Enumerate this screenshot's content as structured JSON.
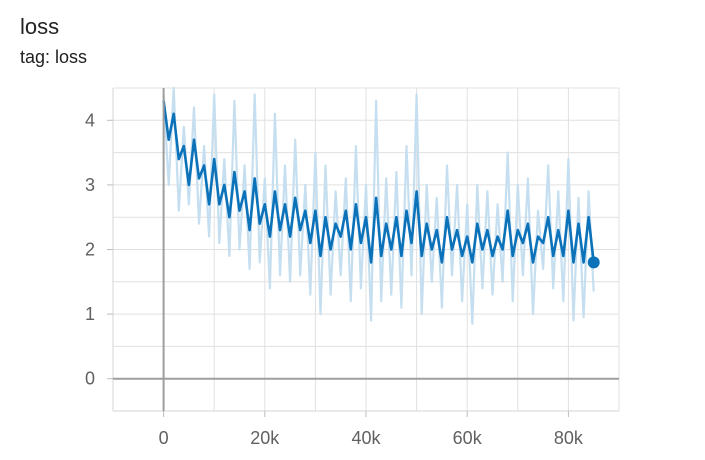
{
  "header": {
    "title": "loss",
    "subtitle": "tag: loss"
  },
  "chart_data": {
    "type": "line",
    "title": "loss",
    "subtitle": "tag: loss",
    "xlabel": "",
    "ylabel": "",
    "xlim": [
      -10000,
      90000
    ],
    "ylim": [
      -0.5,
      4.5
    ],
    "x_ticks": [
      0,
      20000,
      40000,
      60000,
      80000
    ],
    "x_tick_labels": [
      "0",
      "20k",
      "40k",
      "60k",
      "80k"
    ],
    "y_ticks": [
      0,
      1,
      2,
      3,
      4
    ],
    "y_tick_labels": [
      "0",
      "1",
      "2",
      "3",
      "4"
    ],
    "grid": true,
    "legend": "none",
    "colors": {
      "raw": "#c6dff0",
      "smoothed": "#0b72b9",
      "axis_zero": "#9e9e9e",
      "grid": "#e0e0e0"
    },
    "series": [
      {
        "role": "raw",
        "x": [
          0,
          1000,
          2000,
          3000,
          4000,
          5000,
          6000,
          7000,
          8000,
          9000,
          10000,
          11000,
          12000,
          13000,
          14000,
          15000,
          16000,
          17000,
          18000,
          19000,
          20000,
          21000,
          22000,
          23000,
          24000,
          25000,
          26000,
          27000,
          28000,
          29000,
          30000,
          31000,
          32000,
          33000,
          34000,
          35000,
          36000,
          37000,
          38000,
          39000,
          40000,
          41000,
          42000,
          43000,
          44000,
          45000,
          46000,
          47000,
          48000,
          49000,
          50000,
          51000,
          52000,
          53000,
          54000,
          55000,
          56000,
          57000,
          58000,
          59000,
          60000,
          61000,
          62000,
          63000,
          64000,
          65000,
          66000,
          67000,
          68000,
          69000,
          70000,
          71000,
          72000,
          73000,
          74000,
          75000,
          76000,
          77000,
          78000,
          79000,
          80000,
          81000,
          82000,
          83000,
          84000,
          85000
        ],
        "values": [
          4.4,
          3.0,
          4.5,
          2.6,
          3.9,
          2.7,
          4.2,
          2.4,
          3.6,
          2.2,
          4.4,
          2.1,
          3.4,
          1.9,
          4.3,
          2.0,
          3.3,
          1.7,
          4.4,
          1.8,
          3.1,
          1.4,
          4.1,
          1.6,
          3.3,
          1.5,
          3.7,
          1.6,
          3.0,
          1.3,
          3.5,
          1.0,
          3.3,
          1.3,
          2.9,
          1.6,
          3.1,
          1.2,
          3.6,
          1.4,
          3.0,
          0.9,
          4.3,
          1.2,
          3.1,
          1.3,
          3.2,
          1.1,
          3.6,
          1.6,
          4.4,
          1.0,
          3.0,
          1.5,
          2.8,
          1.1,
          3.3,
          1.6,
          3.0,
          1.2,
          2.7,
          0.85,
          3.0,
          1.4,
          2.9,
          1.3,
          2.7,
          1.5,
          3.5,
          1.2,
          3.0,
          1.6,
          3.1,
          1.0,
          2.6,
          1.7,
          3.3,
          1.4,
          2.9,
          1.2,
          3.4,
          0.9,
          2.8,
          0.95,
          2.9,
          1.35
        ]
      },
      {
        "role": "smoothed",
        "x": [
          0,
          1000,
          2000,
          3000,
          4000,
          5000,
          6000,
          7000,
          8000,
          9000,
          10000,
          11000,
          12000,
          13000,
          14000,
          15000,
          16000,
          17000,
          18000,
          19000,
          20000,
          21000,
          22000,
          23000,
          24000,
          25000,
          26000,
          27000,
          28000,
          29000,
          30000,
          31000,
          32000,
          33000,
          34000,
          35000,
          36000,
          37000,
          38000,
          39000,
          40000,
          41000,
          42000,
          43000,
          44000,
          45000,
          46000,
          47000,
          48000,
          49000,
          50000,
          51000,
          52000,
          53000,
          54000,
          55000,
          56000,
          57000,
          58000,
          59000,
          60000,
          61000,
          62000,
          63000,
          64000,
          65000,
          66000,
          67000,
          68000,
          69000,
          70000,
          71000,
          72000,
          73000,
          74000,
          75000,
          76000,
          77000,
          78000,
          79000,
          80000,
          81000,
          82000,
          83000,
          84000,
          85000
        ],
        "values": [
          4.3,
          3.7,
          4.1,
          3.4,
          3.6,
          3.0,
          3.7,
          3.1,
          3.3,
          2.7,
          3.4,
          2.7,
          3.0,
          2.5,
          3.2,
          2.6,
          2.9,
          2.3,
          3.1,
          2.4,
          2.7,
          2.2,
          2.9,
          2.3,
          2.7,
          2.2,
          2.8,
          2.3,
          2.6,
          2.1,
          2.6,
          1.9,
          2.5,
          2.0,
          2.4,
          2.2,
          2.6,
          2.0,
          2.7,
          2.1,
          2.5,
          1.8,
          2.8,
          1.9,
          2.4,
          2.0,
          2.5,
          1.9,
          2.6,
          2.1,
          2.9,
          1.9,
          2.4,
          2.0,
          2.3,
          1.8,
          2.5,
          2.0,
          2.3,
          1.9,
          2.2,
          1.8,
          2.4,
          2.0,
          2.3,
          1.9,
          2.2,
          2.0,
          2.6,
          1.9,
          2.3,
          2.1,
          2.4,
          1.8,
          2.2,
          2.1,
          2.5,
          1.9,
          2.3,
          1.9,
          2.6,
          1.8,
          2.4,
          1.8,
          2.5,
          1.8
        ]
      }
    ],
    "last_point": {
      "x": 85000,
      "y": 1.8
    }
  }
}
